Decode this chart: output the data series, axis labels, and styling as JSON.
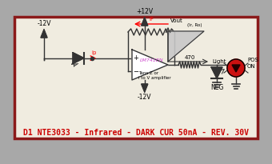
{
  "title": "D1 NTE3033 - Infrared - DARK CUR 50nA - REV. 30V",
  "title_color": "#cc0000",
  "title_fontsize": 7.0,
  "bg_color": "#f0ece0",
  "border_color": "#8b1a1a",
  "outer_bg": "#a8a8a8",
  "lm741_label": "LM741EN",
  "lm741_color": "#cc44cc",
  "tans_label": "Tans Z or\ni to V amplifier",
  "neg12_labels": [
    "-12V",
    "-12V"
  ],
  "pos12_label": "+12V",
  "vout_label": "Vout",
  "light_label": "Light",
  "src_label": "(Ir, Ro)",
  "neg_label": "NEG",
  "pos_on_label": "POS\nON",
  "r470_label": "470",
  "if_label": "IF",
  "ip_label": "ip",
  "wire_color": "#555555",
  "line_color": "#333333"
}
